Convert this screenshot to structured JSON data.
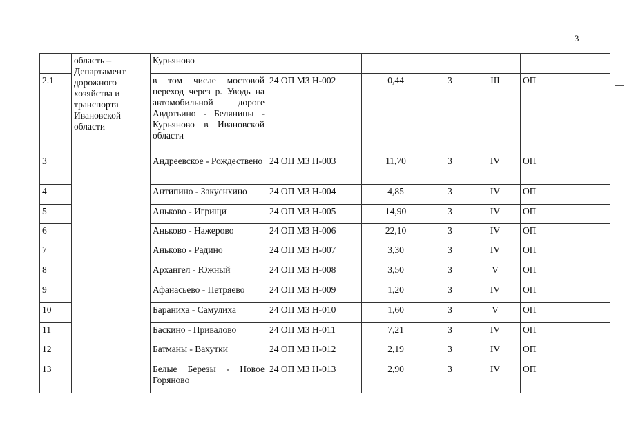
{
  "page_number": "3",
  "org_cell": "область – Департамент дорожного хозяйства и транспорта Ивановской области",
  "first_row": {
    "num": "",
    "name": "Курьяново"
  },
  "rows": [
    {
      "num": "2.1",
      "name": "в том числе мостовой переход через р. Уводь на автомобильной дороге Авдотьино - Беляницы - Курьяново в Ивановской области",
      "id": "24 ОП МЗ Н-002",
      "length": "0,44",
      "cat": "3",
      "class": "III",
      "type": "ОП"
    },
    {
      "num": "3",
      "name": "Андреевское - Рождествено",
      "id": "24 ОП МЗ Н-003",
      "length": "11,70",
      "cat": "3",
      "class": "IV",
      "type": "ОП"
    },
    {
      "num": "4",
      "name": "Антипино - Закуснхино",
      "id": "24 ОП МЗ Н-004",
      "length": "4,85",
      "cat": "3",
      "class": "IV",
      "type": "ОП"
    },
    {
      "num": "5",
      "name": "Аньково - Игрищи",
      "id": "24 ОП МЗ Н-005",
      "length": "14,90",
      "cat": "3",
      "class": "IV",
      "type": "ОП"
    },
    {
      "num": "6",
      "name": "Аньково - Нажерово",
      "id": "24 ОП МЗ Н-006",
      "length": "22,10",
      "cat": "3",
      "class": "IV",
      "type": "ОП"
    },
    {
      "num": "7",
      "name": "Аньково - Радино",
      "id": "24 ОП МЗ Н-007",
      "length": "3,30",
      "cat": "3",
      "class": "IV",
      "type": "ОП"
    },
    {
      "num": "8",
      "name": "Архангел - Южный",
      "id": "24 ОП МЗ Н-008",
      "length": "3,50",
      "cat": "3",
      "class": "V",
      "type": "ОП"
    },
    {
      "num": "9",
      "name": "Афанасьево - Петряево",
      "id": "24 ОП МЗ Н-009",
      "length": "1,20",
      "cat": "3",
      "class": "IV",
      "type": "ОП"
    },
    {
      "num": "10",
      "name": "Бараниха - Самулиха",
      "id": "24 ОП МЗ Н-010",
      "length": "1,60",
      "cat": "3",
      "class": "V",
      "type": "ОП"
    },
    {
      "num": "11",
      "name": "Баскино - Привалово",
      "id": "24 ОП МЗ Н-011",
      "length": "7,21",
      "cat": "3",
      "class": "IV",
      "type": "ОП"
    },
    {
      "num": "12",
      "name": "Батманы - Вахутки",
      "id": "24 ОП МЗ Н-012",
      "length": "2,19",
      "cat": "3",
      "class": "IV",
      "type": "ОП"
    },
    {
      "num": "13",
      "name": "Белые Березы - Новое Горяново",
      "id": "24 ОП МЗ Н-013",
      "length": "2,90",
      "cat": "3",
      "class": "IV",
      "type": "ОП"
    }
  ]
}
